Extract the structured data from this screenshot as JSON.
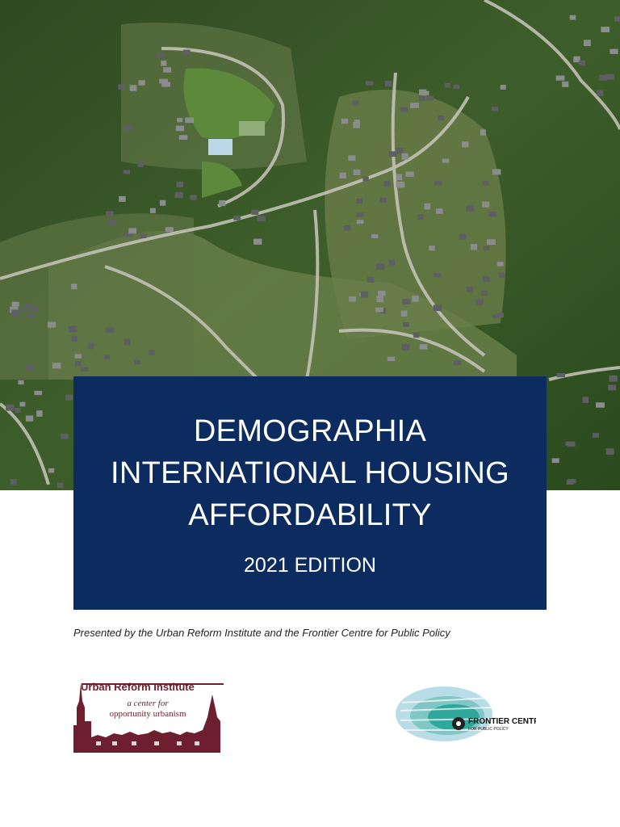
{
  "cover": {
    "title_lines": [
      "DEMOGRAPHIA",
      "INTERNATIONAL HOUSING",
      "AFFORDABILITY"
    ],
    "edition": "2021 EDITION",
    "presented_by": "Presented by the Urban Reform Institute and the Frontier Centre for Public Policy",
    "logos": {
      "urban_reform": {
        "name": "Urban Reform Institute",
        "tagline_1": "a center for",
        "tagline_2": "opportunity urbanism"
      },
      "frontier": {
        "name": "FRONTIER CENTRE",
        "tagline": "FOR PUBLIC POLICY"
      }
    }
  }
}
